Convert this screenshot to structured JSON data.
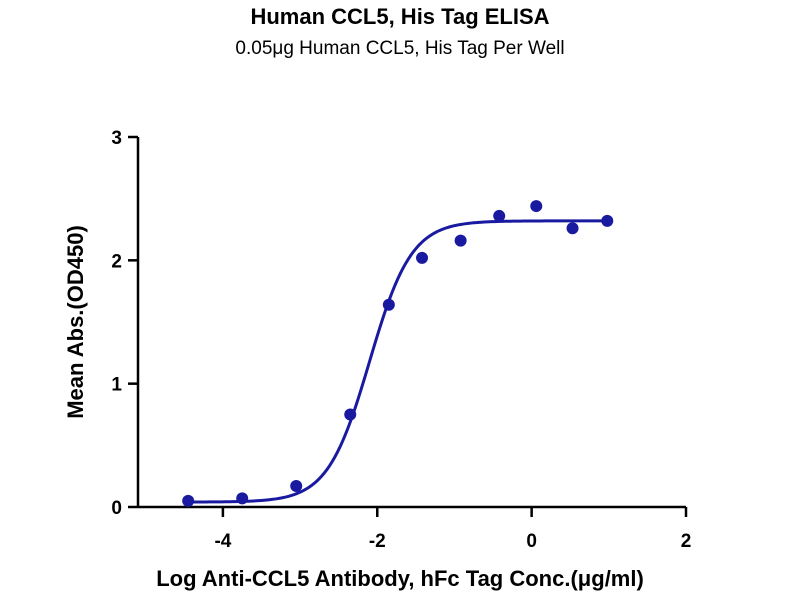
{
  "chart_data": {
    "type": "scatter",
    "title": "Human CCL5, His Tag ELISA",
    "subtitle": "0.05μg Human CCL5, His Tag Per Well",
    "xlabel": "Log Anti-CCL5 Antibody, hFc Tag Conc.(μg/ml)",
    "ylabel": "Mean Abs.(OD450)",
    "xlim": [
      -5.1,
      2
    ],
    "ylim": [
      0,
      3
    ],
    "xticks": [
      -4,
      -2,
      0,
      2
    ],
    "yticks": [
      0,
      1,
      2,
      3
    ],
    "xtick_labels": [
      "-4",
      "-2",
      "0",
      "2"
    ],
    "ytick_labels": [
      "0",
      "1",
      "2",
      "3"
    ],
    "series": [
      {
        "points": {
          "x": [
            -4.45,
            -3.75,
            -3.05,
            -2.35,
            -1.85,
            -1.42,
            -0.92,
            -0.42,
            0.06,
            0.53,
            0.98
          ],
          "y": [
            0.05,
            0.07,
            0.17,
            0.75,
            1.64,
            2.02,
            2.16,
            2.36,
            2.44,
            2.26,
            2.32
          ]
        },
        "fit": {
          "model": "4PL",
          "bottom": 0.04,
          "top": 2.32,
          "logEC50": -2.1,
          "hill": 1.6
        },
        "color": "#1a1aa0"
      }
    ],
    "grid": false,
    "legend": "none"
  }
}
